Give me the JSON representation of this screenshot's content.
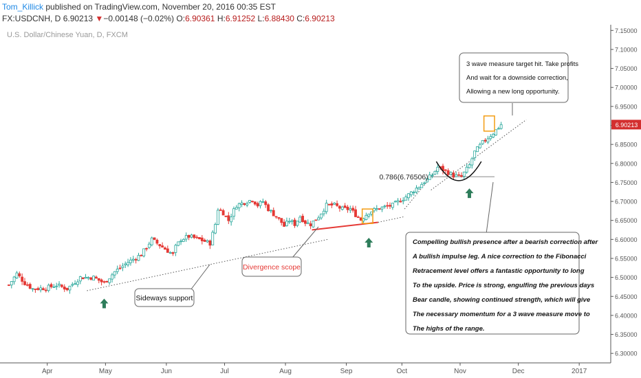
{
  "header": {
    "author": "Tom_Killick",
    "published": "published on TradingView.com, November 20, 2016 00:35 EST",
    "symbol": "FX:USDCNH, D",
    "last": "6.90213",
    "change_arrow": "▼",
    "change": "−0.00148 (−0.02%)",
    "o_label": "O:",
    "o": "6.90361",
    "h_label": "H:",
    "h": "6.91252",
    "l_label": "L:",
    "l": "6.88430",
    "c_label": "C:",
    "c": "6.90213"
  },
  "chart_data": {
    "type": "candlestick",
    "title": "U.S. Dollar/Chinese Yuan, D, FXCM",
    "yaxis": {
      "range": [
        6.275,
        7.165
      ],
      "ticks": [
        "6.30000",
        "6.35000",
        "6.40000",
        "6.45000",
        "6.50000",
        "6.55000",
        "6.60000",
        "6.65000",
        "6.70000",
        "6.75000",
        "6.80000",
        "6.85000",
        "6.90000",
        "6.95000",
        "7.00000",
        "7.05000",
        "7.10000",
        "7.15000"
      ],
      "tick_values": [
        6.3,
        6.35,
        6.4,
        6.45,
        6.5,
        6.55,
        6.6,
        6.65,
        6.7,
        6.75,
        6.8,
        6.85,
        6.9,
        6.95,
        7.0,
        7.05,
        7.1,
        7.15
      ]
    },
    "xaxis": {
      "months": [
        {
          "label": "Apr",
          "bar": 15
        },
        {
          "label": "May",
          "bar": 37
        },
        {
          "label": "Jun",
          "bar": 60
        },
        {
          "label": "Jul",
          "bar": 82
        },
        {
          "label": "Aug",
          "bar": 105
        },
        {
          "label": "Sep",
          "bar": 128
        },
        {
          "label": "Oct",
          "bar": 149
        },
        {
          "label": "Nov",
          "bar": 171
        },
        {
          "label": "Dec",
          "bar": 193
        },
        {
          "label": "2017",
          "bar": 216
        }
      ]
    },
    "price_label": {
      "text": "6.90213",
      "value": 6.90213,
      "color": "#d32f2f"
    },
    "fib_label": {
      "text": "0.786(6.76506)",
      "value": 6.76506,
      "from_bar": 160,
      "to_bar": 184
    },
    "waypoints": [
      [
        0,
        6.48
      ],
      [
        3,
        6.51
      ],
      [
        6,
        6.485
      ],
      [
        9,
        6.47
      ],
      [
        14,
        6.472
      ],
      [
        18,
        6.48
      ],
      [
        22,
        6.47
      ],
      [
        27,
        6.5
      ],
      [
        32,
        6.5
      ],
      [
        36,
        6.485
      ],
      [
        40,
        6.515
      ],
      [
        45,
        6.54
      ],
      [
        50,
        6.56
      ],
      [
        54,
        6.6
      ],
      [
        59,
        6.575
      ],
      [
        62,
        6.56
      ],
      [
        63,
        6.58
      ],
      [
        65,
        6.6
      ],
      [
        68,
        6.608
      ],
      [
        72,
        6.6
      ],
      [
        76,
        6.59
      ],
      [
        78,
        6.64
      ],
      [
        79,
        6.68
      ],
      [
        81,
        6.67
      ],
      [
        83,
        6.65
      ],
      [
        86,
        6.69
      ],
      [
        90,
        6.7
      ],
      [
        92,
        6.705
      ],
      [
        94,
        6.69
      ],
      [
        96,
        6.7
      ],
      [
        98,
        6.68
      ],
      [
        101,
        6.66
      ],
      [
        103,
        6.645
      ],
      [
        104,
        6.635
      ],
      [
        106,
        6.65
      ],
      [
        108,
        6.64
      ],
      [
        110,
        6.66
      ],
      [
        112,
        6.645
      ],
      [
        114,
        6.64
      ],
      [
        117,
        6.66
      ],
      [
        120,
        6.69
      ],
      [
        123,
        6.69
      ],
      [
        126,
        6.68
      ],
      [
        129,
        6.68
      ],
      [
        131,
        6.665
      ],
      [
        133,
        6.652
      ],
      [
        136,
        6.672
      ],
      [
        140,
        6.682
      ],
      [
        145,
        6.69
      ],
      [
        150,
        6.712
      ],
      [
        155,
        6.74
      ],
      [
        160,
        6.77
      ],
      [
        162,
        6.79
      ],
      [
        165,
        6.78
      ],
      [
        168,
        6.768
      ],
      [
        171,
        6.765
      ],
      [
        174,
        6.795
      ],
      [
        176,
        6.83
      ],
      [
        179,
        6.855
      ],
      [
        183,
        6.88
      ],
      [
        186,
        6.902
      ]
    ],
    "candle_count": 187,
    "trendlines": [
      {
        "name": "sideways-support",
        "style": "dotted",
        "from": [
          30,
          6.465
        ],
        "to": [
          121,
          6.6
        ]
      },
      {
        "name": "divergence-line",
        "style": "solid",
        "color": "#e53935",
        "from": [
          115,
          6.625
        ],
        "to": [
          140,
          6.645
        ]
      },
      {
        "name": "support-dotted-2",
        "style": "dotted",
        "from": [
          140,
          6.645
        ],
        "to": [
          150,
          6.66
        ]
      },
      {
        "name": "upper-dotted",
        "style": "dotted",
        "from": [
          160,
          6.73
        ],
        "to": [
          196,
          6.915
        ]
      },
      {
        "name": "early-dotted",
        "style": "dotted",
        "from": [
          150,
          6.68
        ],
        "to": [
          163,
          6.79
        ]
      }
    ],
    "annotations": {
      "sideways_support": "Sideways support",
      "divergence_scope": "Divergence scope",
      "target_lines": [
        "3 wave measure target hit. Take profits",
        "And wait for a downside correction,",
        "Allowing a new long opportunity."
      ],
      "analysis_lines": [
        "Compelling bullish presence after a bearish correction after",
        "A bullish impulse leg. A nice correction to the Fibonacci",
        "Retracement level offers a fantastic opportunity to long",
        "To the upside. Price is strong, engulfing the previous days",
        "Bear candle, showing continued strength, which will give",
        "The necessary momentum for a 3 wave measure move to",
        "The highs of the range."
      ]
    },
    "arrows": [
      {
        "name": "arrow-may",
        "bar": 36,
        "value": 6.455
      },
      {
        "name": "arrow-sep",
        "bar": 136,
        "value": 6.615
      },
      {
        "name": "arrow-nov",
        "bar": 174,
        "value": 6.745
      }
    ],
    "boxes": [
      {
        "name": "highlight-box-sep",
        "from_bar": 134,
        "to_bar": 138,
        "low": 6.642,
        "high": 6.68
      },
      {
        "name": "highlight-box-top",
        "from_bar": 180,
        "to_bar": 184,
        "low": 6.885,
        "high": 6.925
      }
    ],
    "arc": {
      "from_bar": 162,
      "to_bar": 179,
      "low": 6.755,
      "top": 6.805
    },
    "colors": {
      "up": "#26a69a",
      "down": "#e53935",
      "up_fill": "#ffffff",
      "axis": "#555555"
    }
  }
}
